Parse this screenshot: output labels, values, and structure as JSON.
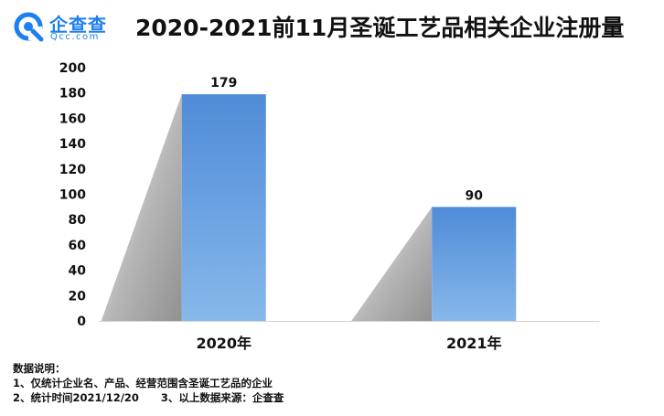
{
  "logo": {
    "name": "企查查",
    "sub": "Qcc.com"
  },
  "chart_data": {
    "type": "bar",
    "title": "2020-2021前11月圣诞工艺品相关企业注册量",
    "categories": [
      "2020年",
      "2021年"
    ],
    "values": [
      179,
      90
    ],
    "data_labels": [
      "179",
      "90"
    ],
    "yticks": [
      "0",
      "20",
      "40",
      "60",
      "80",
      "100",
      "120",
      "140",
      "160",
      "180",
      "200"
    ],
    "ylim": [
      0,
      200
    ],
    "xlabel": "",
    "ylabel": "",
    "grid": false,
    "bar_color": "#5b95dc"
  },
  "notes": {
    "heading": "数据说明：",
    "line1": "1、仅统计企业名、产品、经营范围含圣诞工艺品的企业",
    "line2a": "2、统计时间2021/12/20",
    "line2b": "3、以上数据来源：企查查"
  }
}
